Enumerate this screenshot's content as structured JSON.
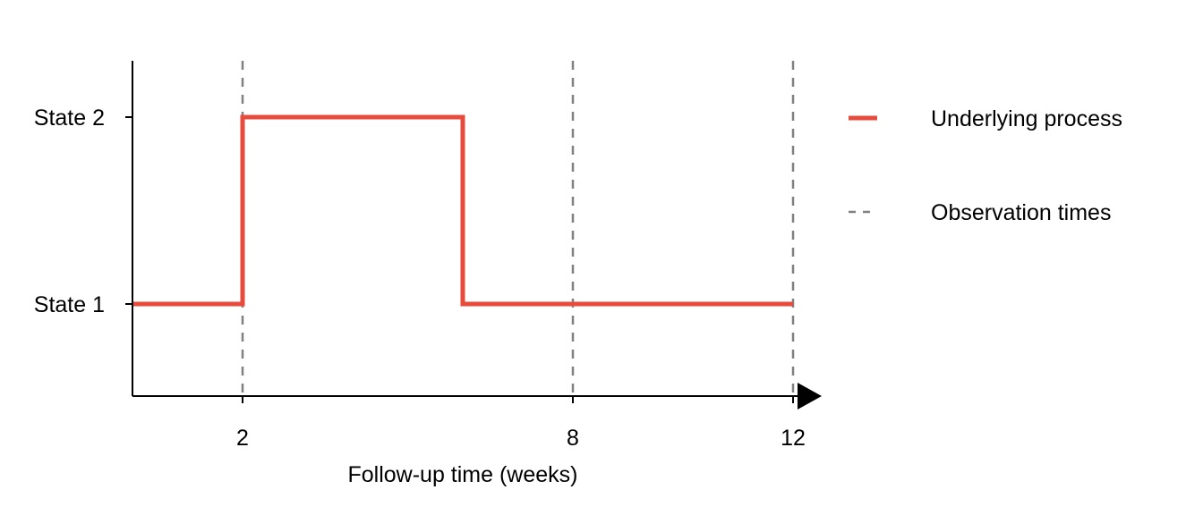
{
  "chart_data": {
    "type": "line",
    "xlabel": "Follow-up time (weeks)",
    "ylabel": "",
    "xlim": [
      0,
      12.5
    ],
    "x_ticks": [
      2,
      8,
      12
    ],
    "x_tick_labels": [
      "2",
      "8",
      "12"
    ],
    "y_categories": [
      "State 1",
      "State 2"
    ],
    "grid": false,
    "legend_position": "right",
    "series": [
      {
        "name": "Underlying process",
        "style": "step",
        "color": "#E64B3C",
        "points": [
          {
            "x": 0,
            "y": "State 1"
          },
          {
            "x": 2,
            "y": "State 1"
          },
          {
            "x": 2,
            "y": "State 2"
          },
          {
            "x": 6,
            "y": "State 2"
          },
          {
            "x": 6,
            "y": "State 1"
          },
          {
            "x": 12,
            "y": "State 1"
          }
        ]
      },
      {
        "name": "Observation times",
        "style": "vertical-dashed",
        "color": "#808080",
        "x": [
          2,
          8,
          12
        ]
      }
    ]
  }
}
